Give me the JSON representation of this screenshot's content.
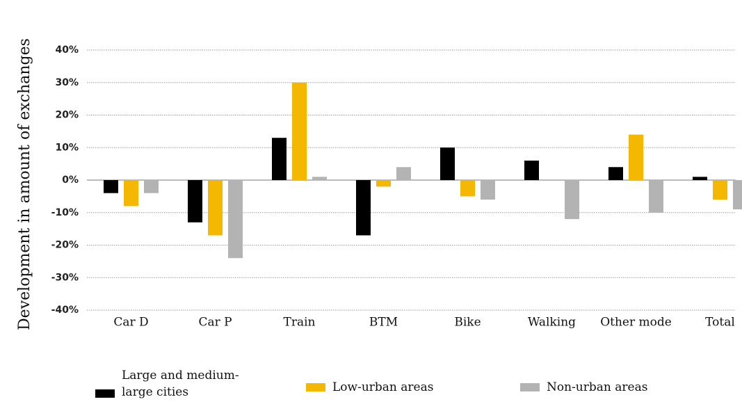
{
  "chart_data": {
    "type": "bar",
    "y_label": "Development in amount of exchanges",
    "categories": [
      "Car D",
      "Car P",
      "Train",
      "BTM",
      "Bike",
      "Walking",
      "Other mode",
      "Total"
    ],
    "series": [
      {
        "name": "Large and medium-large cities",
        "color": "#000000",
        "values": [
          -4,
          -13,
          13,
          -17,
          10,
          6,
          4,
          1
        ]
      },
      {
        "name": "Low-urban areas",
        "color": "#f5b800",
        "values": [
          -8,
          -17,
          30,
          -2,
          -5,
          0,
          14,
          -6
        ]
      },
      {
        "name": "Non-urban areas",
        "color": "#b3b3b3",
        "values": [
          -4,
          -24,
          1,
          4,
          -6,
          -12,
          -10,
          -9
        ]
      }
    ],
    "ylim": [
      -40,
      40
    ],
    "yticks": [
      {
        "value": -40,
        "label": "-40%"
      },
      {
        "value": -30,
        "label": "-30%"
      },
      {
        "value": -20,
        "label": "-20%"
      },
      {
        "value": -10,
        "label": "-10%"
      },
      {
        "value": 0,
        "label": "0%"
      },
      {
        "value": 10,
        "label": "10%"
      },
      {
        "value": 20,
        "label": "20%"
      },
      {
        "value": 30,
        "label": "30%"
      },
      {
        "value": 40,
        "label": "40%"
      }
    ],
    "grid": true
  }
}
